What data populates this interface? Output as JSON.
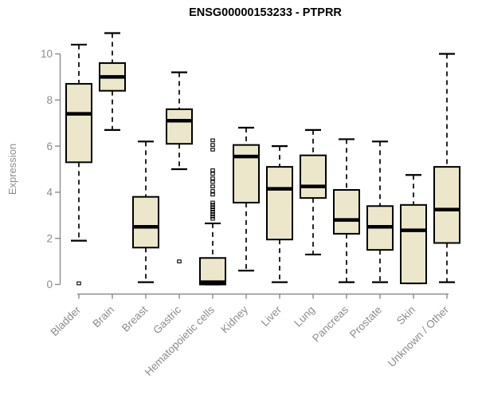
{
  "chart_data": {
    "type": "boxplot",
    "title": "ENSG00000153233 - PTPRR",
    "ylabel": "Expression",
    "xlabel": "",
    "ylim": [
      0,
      10
    ],
    "yticks": [
      0,
      2,
      4,
      6,
      8,
      10
    ],
    "grid": false,
    "legend": "none",
    "categories": [
      "Bladder",
      "Brain",
      "Breast",
      "Gastric",
      "Hematopoietic cells",
      "Kidney",
      "Liver",
      "Lung",
      "Pancreas",
      "Prostate",
      "Skin",
      "Unknown / Other"
    ],
    "boxes": [
      {
        "category": "Bladder",
        "low": 1.9,
        "q1": 5.3,
        "median": 7.4,
        "q3": 8.7,
        "high": 10.4,
        "outliers": [
          0.05
        ]
      },
      {
        "category": "Brain",
        "low": 6.7,
        "q1": 8.4,
        "median": 9.0,
        "q3": 9.6,
        "high": 10.9,
        "outliers": []
      },
      {
        "category": "Breast",
        "low": 0.1,
        "q1": 1.6,
        "median": 2.5,
        "q3": 3.8,
        "high": 6.2,
        "outliers": []
      },
      {
        "category": "Gastric",
        "low": 5.0,
        "q1": 6.1,
        "median": 7.1,
        "q3": 7.6,
        "high": 9.2,
        "outliers": [
          1.0
        ]
      },
      {
        "category": "Hematopoietic cells",
        "low": 0.0,
        "q1": 0.0,
        "median": 0.1,
        "q3": 1.15,
        "high": 2.65,
        "outliers": [
          6.25,
          6.05,
          5.85,
          4.95,
          4.8,
          4.6,
          4.45,
          4.25,
          4.05,
          3.9,
          3.55,
          3.45,
          3.35,
          3.25,
          3.15,
          3.05,
          2.95,
          2.85
        ]
      },
      {
        "category": "Kidney",
        "low": 0.6,
        "q1": 3.55,
        "median": 5.55,
        "q3": 6.05,
        "high": 6.8,
        "outliers": []
      },
      {
        "category": "Liver",
        "low": 0.1,
        "q1": 1.95,
        "median": 4.15,
        "q3": 5.1,
        "high": 6.0,
        "outliers": []
      },
      {
        "category": "Lung",
        "low": 1.3,
        "q1": 3.75,
        "median": 4.25,
        "q3": 5.6,
        "high": 6.7,
        "outliers": []
      },
      {
        "category": "Pancreas",
        "low": 0.1,
        "q1": 2.2,
        "median": 2.8,
        "q3": 4.1,
        "high": 6.3,
        "outliers": []
      },
      {
        "category": "Prostate",
        "low": 0.1,
        "q1": 1.5,
        "median": 2.5,
        "q3": 3.4,
        "high": 6.2,
        "outliers": []
      },
      {
        "category": "Skin",
        "low": 0.05,
        "q1": 0.05,
        "median": 2.35,
        "q3": 3.45,
        "high": 4.75,
        "outliers": []
      },
      {
        "category": "Unknown / Other",
        "low": 0.1,
        "q1": 1.8,
        "median": 3.25,
        "q3": 5.1,
        "high": 10.0,
        "outliers": []
      }
    ],
    "colors": {
      "box_fill": "#ECE7CA",
      "box_border": "#000000",
      "median": "#000000",
      "whisker": "#000000",
      "outlier": "#000000",
      "axis": "#8C8C8C",
      "tick_label": "#8C8C8C",
      "title": "#000000",
      "background": "#FFFFFF"
    }
  }
}
